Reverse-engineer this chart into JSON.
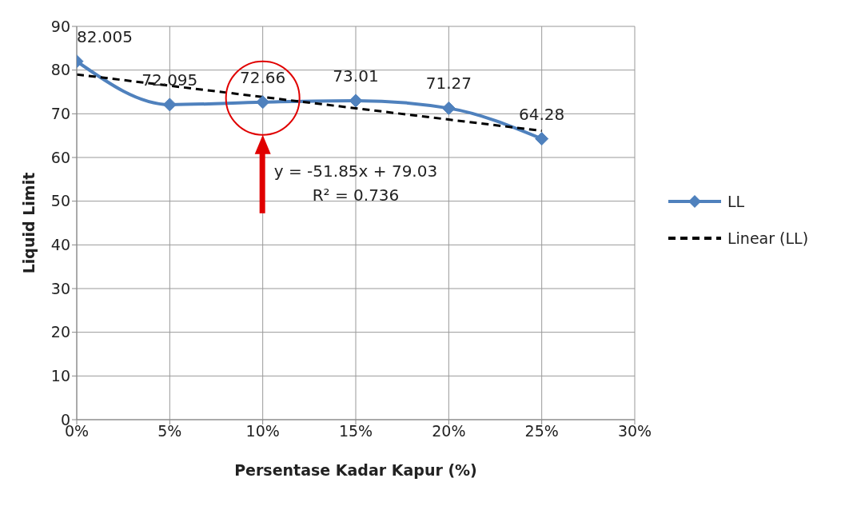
{
  "chart_data": {
    "type": "line",
    "xlabel": "Persentase Kadar Kapur (%)",
    "ylabel": "Liquid Limit",
    "xlim": [
      0,
      0.3
    ],
    "xticks": [
      {
        "value": 0,
        "label": "0%"
      },
      {
        "value": 0.05,
        "label": "5%"
      },
      {
        "value": 0.1,
        "label": "10%"
      },
      {
        "value": 0.15,
        "label": "15%"
      },
      {
        "value": 0.2,
        "label": "20%"
      },
      {
        "value": 0.25,
        "label": "25%"
      },
      {
        "value": 0.3,
        "label": "30%"
      }
    ],
    "ylim": [
      0,
      90
    ],
    "yticks": [
      0,
      10,
      20,
      30,
      40,
      50,
      60,
      70,
      80,
      90
    ],
    "grid": true,
    "legend": "right",
    "annotations": [
      "y = -51.85x + 79.03",
      "R² = 0.736"
    ],
    "series": [
      {
        "name": "LL",
        "color": "#4f81bd",
        "x": [
          0,
          0.05,
          0.1,
          0.15,
          0.2,
          0.25
        ],
        "values": [
          82.005,
          72.095,
          72.66,
          73.01,
          71.27,
          64.28
        ],
        "value_labels": [
          "82.005",
          "72.095",
          "72.66",
          "73.01",
          "71.27",
          "64.28"
        ],
        "marker": "diamond",
        "line_style": "solid"
      },
      {
        "name": "Linear (LL)",
        "color": "#000000",
        "x": [
          0,
          0.25
        ],
        "values": [
          79,
          66.1
        ],
        "marker": "none",
        "line_style": "dashed"
      }
    ]
  }
}
